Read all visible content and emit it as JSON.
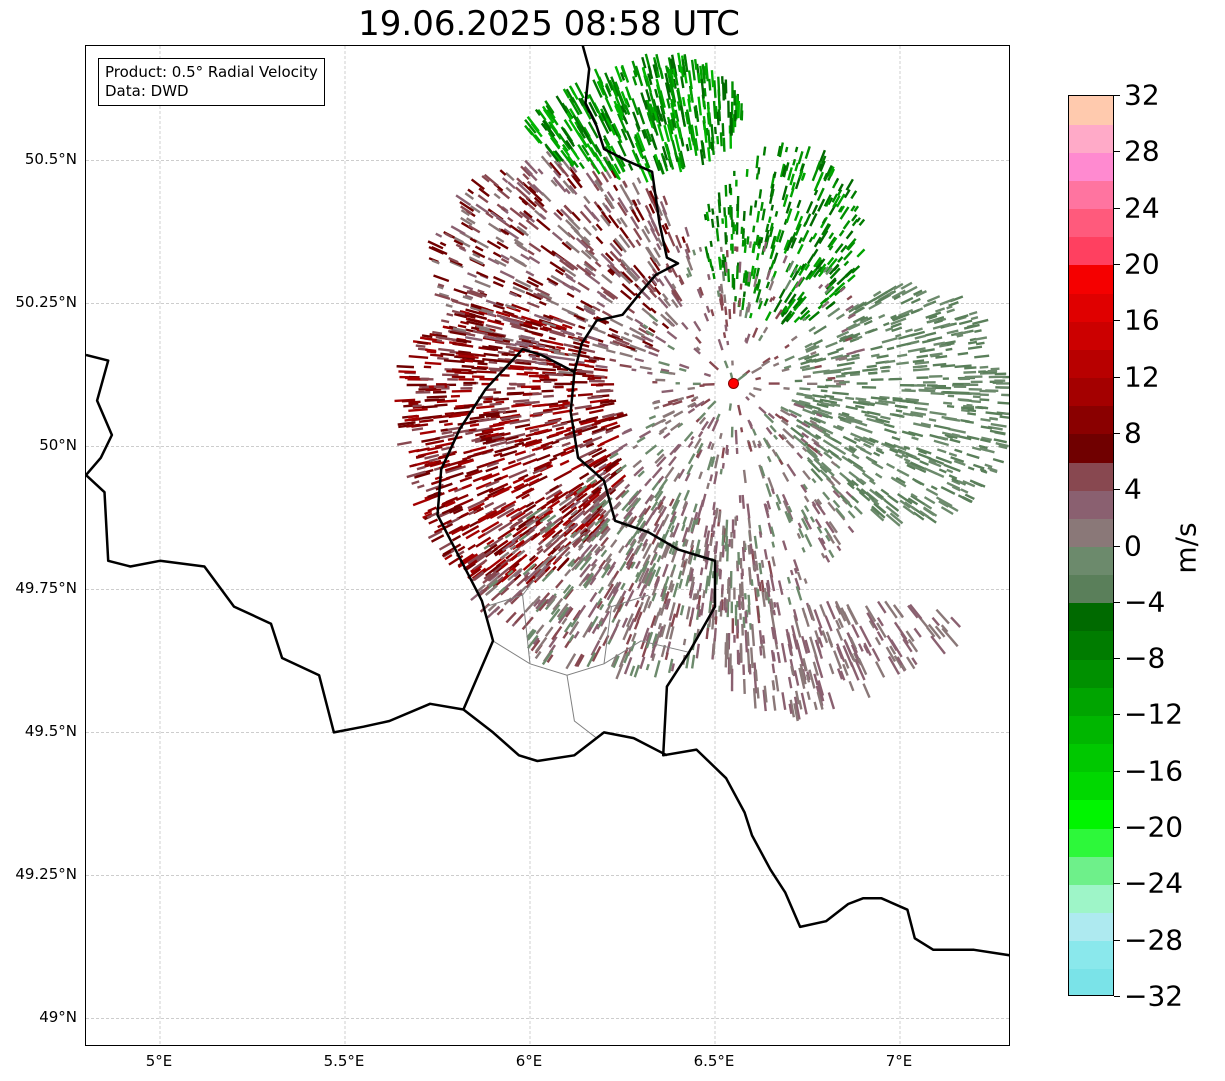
{
  "title": "19.06.2025 08:58 UTC",
  "info_box": {
    "line1": "Product: 0.5° Radial Velocity",
    "line2": "Data: DWD"
  },
  "map": {
    "lon_range": [
      4.8,
      7.3
    ],
    "lat_range": [
      48.95,
      50.7
    ],
    "lat_ticks": [
      {
        "value": 50.5,
        "label": "50.5°N"
      },
      {
        "value": 50.25,
        "label": "50.25°N"
      },
      {
        "value": 50.0,
        "label": "50°N"
      },
      {
        "value": 49.75,
        "label": "49.75°N"
      },
      {
        "value": 49.5,
        "label": "49.5°N"
      },
      {
        "value": 49.25,
        "label": "49.25°N"
      },
      {
        "value": 49.0,
        "label": "49°N"
      }
    ],
    "lon_ticks": [
      {
        "value": 5.0,
        "label": "5°E"
      },
      {
        "value": 5.5,
        "label": "5.5°E"
      },
      {
        "value": 6.0,
        "label": "6°E"
      },
      {
        "value": 6.5,
        "label": "6.5°E"
      },
      {
        "value": 7.0,
        "label": "7°E"
      }
    ],
    "radar_site": {
      "lon": 6.55,
      "lat": 50.11,
      "color": "#ff0000"
    },
    "border_color": "#000000",
    "admin_border_color": "#808080",
    "gridlines": true
  },
  "colorbar": {
    "label": "m/s",
    "min": -32,
    "max": 32,
    "ticks": [
      "32",
      "28",
      "24",
      "20",
      "16",
      "12",
      "8",
      "4",
      "0",
      "−4",
      "−8",
      "−12",
      "−16",
      "−20",
      "−24",
      "−28",
      "−32"
    ],
    "colors": [
      "#7ae3e8",
      "#8ae8ec",
      "#aeeaf0",
      "#9ef5c8",
      "#6ef08a",
      "#2df83a",
      "#00f500",
      "#00d800",
      "#00c800",
      "#00b600",
      "#00a400",
      "#009000",
      "#007c00",
      "#006a00",
      "#5a7f5a",
      "#6c8a6c",
      "#8a7878",
      "#8a6070",
      "#884850",
      "#700000",
      "#8a0000",
      "#a40000",
      "#b80000",
      "#cc0000",
      "#e00000",
      "#f50000",
      "#ff4060",
      "#ff5a7c",
      "#ff74a0",
      "#ff8ad0",
      "#ffaac8",
      "#ffcaae"
    ]
  }
}
